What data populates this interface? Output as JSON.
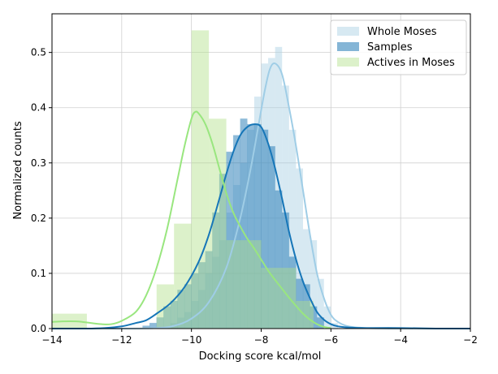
{
  "chart_data": {
    "type": "bar",
    "xlabel": "Docking score kcal/mol",
    "ylabel": "Normalized counts",
    "xlim": [
      -14,
      -2
    ],
    "ylim": [
      0,
      0.57
    ],
    "x_ticks": [
      -14,
      -12,
      -10,
      -8,
      -6,
      -4,
      -2
    ],
    "y_ticks": [
      0.0,
      0.1,
      0.2,
      0.3,
      0.4,
      0.5
    ],
    "x_tick_labels": [
      "−14",
      "−12",
      "−10",
      "−8",
      "−6",
      "−4",
      "−2"
    ],
    "y_tick_labels": [
      "0.0",
      "0.1",
      "0.2",
      "0.3",
      "0.4",
      "0.5"
    ],
    "grid": true,
    "legend_position": "top-right",
    "series": [
      {
        "name": "Whole Moses",
        "color": "#a6cee3",
        "bins": [
          {
            "x0": -10.6,
            "x1": -10.4,
            "y": 0.01
          },
          {
            "x0": -10.4,
            "x1": -10.2,
            "y": 0.02
          },
          {
            "x0": -10.2,
            "x1": -10.0,
            "y": 0.03
          },
          {
            "x0": -10.0,
            "x1": -9.8,
            "y": 0.05
          },
          {
            "x0": -9.8,
            "x1": -9.6,
            "y": 0.07
          },
          {
            "x0": -9.6,
            "x1": -9.4,
            "y": 0.1
          },
          {
            "x0": -9.4,
            "x1": -9.2,
            "y": 0.13
          },
          {
            "x0": -9.2,
            "x1": -9.0,
            "y": 0.16
          },
          {
            "x0": -9.0,
            "x1": -8.8,
            "y": 0.21
          },
          {
            "x0": -8.8,
            "x1": -8.6,
            "y": 0.26
          },
          {
            "x0": -8.6,
            "x1": -8.4,
            "y": 0.3
          },
          {
            "x0": -8.4,
            "x1": -8.2,
            "y": 0.36
          },
          {
            "x0": -8.2,
            "x1": -8.0,
            "y": 0.42
          },
          {
            "x0": -8.0,
            "x1": -7.8,
            "y": 0.48
          },
          {
            "x0": -7.8,
            "x1": -7.6,
            "y": 0.49
          },
          {
            "x0": -7.6,
            "x1": -7.4,
            "y": 0.51
          },
          {
            "x0": -7.4,
            "x1": -7.2,
            "y": 0.44
          },
          {
            "x0": -7.2,
            "x1": -7.0,
            "y": 0.36
          },
          {
            "x0": -7.0,
            "x1": -6.8,
            "y": 0.29
          },
          {
            "x0": -6.8,
            "x1": -6.6,
            "y": 0.18
          },
          {
            "x0": -6.6,
            "x1": -6.4,
            "y": 0.16
          },
          {
            "x0": -6.4,
            "x1": -6.2,
            "y": 0.09
          },
          {
            "x0": -6.2,
            "x1": -6.0,
            "y": 0.04
          },
          {
            "x0": -6.0,
            "x1": -5.8,
            "y": 0.01
          }
        ],
        "kde": {
          "x": [
            -14,
            -12,
            -11,
            -10.5,
            -10,
            -9.5,
            -9,
            -8.6,
            -8.3,
            -8.1,
            -7.9,
            -7.75,
            -7.6,
            -7.4,
            -7.2,
            -7.0,
            -6.8,
            -6.6,
            -6.4,
            -6.2,
            -6.0,
            -5.8,
            -5.5,
            -5,
            -4,
            -2
          ],
          "y": [
            0,
            0,
            0.001,
            0.005,
            0.018,
            0.048,
            0.11,
            0.2,
            0.29,
            0.36,
            0.43,
            0.47,
            0.48,
            0.46,
            0.4,
            0.33,
            0.25,
            0.17,
            0.1,
            0.055,
            0.025,
            0.012,
            0.004,
            0.001,
            0,
            0
          ]
        }
      },
      {
        "name": "Samples",
        "color": "#1f78b4",
        "bins": [
          {
            "x0": -11.4,
            "x1": -11.2,
            "y": 0.005
          },
          {
            "x0": -11.2,
            "x1": -11.0,
            "y": 0.01
          },
          {
            "x0": -11.0,
            "x1": -10.8,
            "y": 0.02
          },
          {
            "x0": -10.8,
            "x1": -10.6,
            "y": 0.04
          },
          {
            "x0": -10.6,
            "x1": -10.4,
            "y": 0.05
          },
          {
            "x0": -10.4,
            "x1": -10.2,
            "y": 0.07
          },
          {
            "x0": -10.2,
            "x1": -10.0,
            "y": 0.08
          },
          {
            "x0": -10.0,
            "x1": -9.8,
            "y": 0.1
          },
          {
            "x0": -9.8,
            "x1": -9.6,
            "y": 0.12
          },
          {
            "x0": -9.6,
            "x1": -9.4,
            "y": 0.14
          },
          {
            "x0": -9.4,
            "x1": -9.2,
            "y": 0.21
          },
          {
            "x0": -9.2,
            "x1": -9.0,
            "y": 0.28
          },
          {
            "x0": -9.0,
            "x1": -8.8,
            "y": 0.32
          },
          {
            "x0": -8.8,
            "x1": -8.6,
            "y": 0.35
          },
          {
            "x0": -8.6,
            "x1": -8.4,
            "y": 0.38
          },
          {
            "x0": -8.4,
            "x1": -8.2,
            "y": 0.37
          },
          {
            "x0": -8.2,
            "x1": -8.0,
            "y": 0.37
          },
          {
            "x0": -8.0,
            "x1": -7.8,
            "y": 0.36
          },
          {
            "x0": -7.8,
            "x1": -7.6,
            "y": 0.33
          },
          {
            "x0": -7.6,
            "x1": -7.4,
            "y": 0.25
          },
          {
            "x0": -7.4,
            "x1": -7.2,
            "y": 0.21
          },
          {
            "x0": -7.2,
            "x1": -7.0,
            "y": 0.13
          },
          {
            "x0": -7.0,
            "x1": -6.8,
            "y": 0.09
          },
          {
            "x0": -6.8,
            "x1": -6.6,
            "y": 0.08
          },
          {
            "x0": -6.6,
            "x1": -6.4,
            "y": 0.04
          },
          {
            "x0": -6.4,
            "x1": -6.2,
            "y": 0.02
          }
        ],
        "kde": {
          "x": [
            -14,
            -13,
            -12.5,
            -12,
            -11.6,
            -11.3,
            -11,
            -10.6,
            -10.2,
            -9.8,
            -9.5,
            -9.2,
            -9.0,
            -8.8,
            -8.6,
            -8.4,
            -8.2,
            -8.0,
            -7.8,
            -7.6,
            -7.4,
            -7.2,
            -7.0,
            -6.8,
            -6.6,
            -6.4,
            -6.2,
            -6.0,
            -5.8,
            -5.5,
            -5,
            -4,
            -3,
            -2
          ],
          "y": [
            0,
            0,
            0.001,
            0.004,
            0.01,
            0.015,
            0.027,
            0.046,
            0.075,
            0.12,
            0.17,
            0.235,
            0.28,
            0.32,
            0.35,
            0.365,
            0.37,
            0.365,
            0.335,
            0.29,
            0.235,
            0.175,
            0.125,
            0.085,
            0.055,
            0.03,
            0.016,
            0.008,
            0.004,
            0.002,
            0.001,
            0.001,
            0,
            0
          ]
        }
      },
      {
        "name": "Actives in Moses",
        "color": "#b2df8a",
        "bins": [
          {
            "x0": -14.0,
            "x1": -13.5,
            "y": 0.027
          },
          {
            "x0": -13.5,
            "x1": -13.0,
            "y": 0.027
          },
          {
            "x0": -11.0,
            "x1": -10.5,
            "y": 0.08
          },
          {
            "x0": -10.5,
            "x1": -10.0,
            "y": 0.19
          },
          {
            "x0": -10.0,
            "x1": -9.5,
            "y": 0.54
          },
          {
            "x0": -9.5,
            "x1": -9.0,
            "y": 0.38
          },
          {
            "x0": -9.0,
            "x1": -8.5,
            "y": 0.16
          },
          {
            "x0": -8.5,
            "x1": -8.0,
            "y": 0.16
          },
          {
            "x0": -8.0,
            "x1": -7.5,
            "y": 0.11
          },
          {
            "x0": -7.5,
            "x1": -7.0,
            "y": 0.11
          },
          {
            "x0": -7.0,
            "x1": -6.5,
            "y": 0.05
          }
        ],
        "kde": {
          "x": [
            -14,
            -13.7,
            -13.3,
            -13,
            -12.6,
            -12.3,
            -12,
            -11.6,
            -11.3,
            -11,
            -10.7,
            -10.4,
            -10.2,
            -10.0,
            -9.9,
            -9.8,
            -9.6,
            -9.4,
            -9.2,
            -9.0,
            -8.8,
            -8.6,
            -8.4,
            -8.2,
            -8.0,
            -7.8,
            -7.6,
            -7.4,
            -7.2,
            -7.0,
            -6.8,
            -6.6,
            -6.4,
            -6.2,
            -6.0
          ],
          "y": [
            0.012,
            0.013,
            0.013,
            0.011,
            0.008,
            0.008,
            0.014,
            0.03,
            0.06,
            0.11,
            0.18,
            0.27,
            0.33,
            0.38,
            0.392,
            0.39,
            0.37,
            0.335,
            0.29,
            0.245,
            0.21,
            0.185,
            0.163,
            0.145,
            0.125,
            0.105,
            0.088,
            0.072,
            0.056,
            0.041,
            0.027,
            0.016,
            0.008,
            0.003,
            0.001
          ]
        }
      }
    ]
  }
}
